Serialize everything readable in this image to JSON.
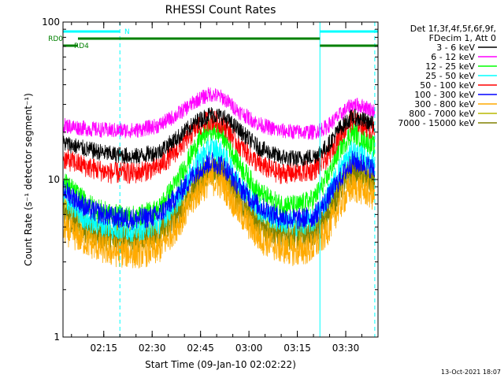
{
  "chart_data": {
    "type": "line",
    "title": "RHESSI Count Rates",
    "xlabel": "Start Time (09-Jan-10 02:02:22)",
    "ylabel": "Count Rate (s⁻¹ detector segment⁻¹)",
    "y_scale": "log",
    "xlim": [
      "02:02:22",
      "03:40:00"
    ],
    "ylim": [
      1,
      100
    ],
    "x_ticks": [
      "02:15",
      "02:30",
      "02:45",
      "03:00",
      "03:15",
      "03:30"
    ],
    "y_ticks": [
      "1",
      "10",
      "100"
    ],
    "grid": false,
    "legend_header": [
      "Det 1f,3f,4f,5f,6f,9f,",
      "FDecim 1, Att 0"
    ],
    "legend_position": "right",
    "series": [
      {
        "name": "3 - 6 keV",
        "color": "#000000",
        "x": [
          "02:03",
          "02:10",
          "02:17",
          "02:25",
          "02:32",
          "02:38",
          "02:44",
          "02:48",
          "02:52",
          "02:57",
          "03:03",
          "03:09",
          "03:15",
          "03:20",
          "03:24",
          "03:28",
          "03:32",
          "03:36",
          "03:39"
        ],
        "y": [
          17,
          15.5,
          14.5,
          14,
          15,
          18.5,
          23.5,
          26,
          25,
          20.5,
          16,
          14,
          13.5,
          14,
          16,
          21,
          25,
          23.5,
          22
        ]
      },
      {
        "name": "6 - 12 keV",
        "color": "#ff00ff",
        "x": [
          "02:03",
          "02:10",
          "02:17",
          "02:25",
          "02:32",
          "02:38",
          "02:44",
          "02:48",
          "02:52",
          "02:57",
          "03:03",
          "03:09",
          "03:15",
          "03:20",
          "03:24",
          "03:28",
          "03:32",
          "03:36",
          "03:39"
        ],
        "y": [
          22,
          21,
          20.5,
          20.5,
          22,
          26,
          32,
          35,
          33,
          27,
          22.5,
          20.5,
          20,
          20,
          21.5,
          25.5,
          30,
          29,
          27
        ]
      },
      {
        "name": "12 - 25 keV",
        "color": "#00ff00",
        "x": [
          "02:03",
          "02:10",
          "02:17",
          "02:25",
          "02:32",
          "02:38",
          "02:44",
          "02:48",
          "02:52",
          "02:57",
          "03:03",
          "03:09",
          "03:15",
          "03:20",
          "03:24",
          "03:28",
          "03:32",
          "03:36",
          "03:39"
        ],
        "y": [
          9.5,
          7,
          6,
          5.8,
          6.5,
          10,
          17,
          21,
          19,
          12.5,
          8.3,
          7,
          6.8,
          7.5,
          10,
          15.5,
          20,
          18,
          16
        ]
      },
      {
        "name": "25 - 50 keV",
        "color": "#00ffff",
        "x": [
          "02:03",
          "02:10",
          "02:17",
          "02:25",
          "02:32",
          "02:38",
          "02:44",
          "02:48",
          "02:52",
          "02:57",
          "03:03",
          "03:09",
          "03:15",
          "03:20",
          "03:24",
          "03:28",
          "03:32",
          "03:36",
          "03:39"
        ],
        "y": [
          7.5,
          5.5,
          5,
          4.8,
          5.3,
          7.5,
          13,
          16,
          14.5,
          9.5,
          6.5,
          5.5,
          5.2,
          5.5,
          7.5,
          11.5,
          15,
          14,
          12.5
        ]
      },
      {
        "name": "50 - 100 keV",
        "color": "#ff0000",
        "x": [
          "02:03",
          "02:10",
          "02:17",
          "02:25",
          "02:32",
          "02:38",
          "02:44",
          "02:48",
          "02:52",
          "02:57",
          "03:03",
          "03:09",
          "03:15",
          "03:20",
          "03:24",
          "03:28",
          "03:32",
          "03:36",
          "03:39"
        ],
        "y": [
          13.5,
          12,
          11,
          11,
          12,
          15.5,
          21.5,
          24,
          22.5,
          16.5,
          12.5,
          11,
          11,
          11.5,
          13.5,
          19,
          24,
          22,
          20
        ]
      },
      {
        "name": "100 - 300 keV",
        "color": "#0000ff",
        "x": [
          "02:03",
          "02:10",
          "02:17",
          "02:25",
          "02:32",
          "02:38",
          "02:44",
          "02:48",
          "02:52",
          "02:57",
          "03:03",
          "03:09",
          "03:15",
          "03:20",
          "03:24",
          "03:28",
          "03:32",
          "03:36",
          "03:39"
        ],
        "y": [
          8.5,
          6.5,
          5.8,
          5.6,
          5.9,
          8,
          11.5,
          13,
          12.3,
          9,
          6.8,
          5.8,
          5.6,
          5.8,
          7.3,
          10,
          13,
          12.5,
          11.5
        ]
      },
      {
        "name": "300 - 800 keV",
        "color": "#ffaa00",
        "x": [
          "02:03",
          "02:10",
          "02:17",
          "02:25",
          "02:32",
          "02:38",
          "02:44",
          "02:48",
          "02:52",
          "02:57",
          "03:03",
          "03:09",
          "03:15",
          "03:20",
          "03:24",
          "03:28",
          "03:32",
          "03:36",
          "03:39"
        ],
        "y": [
          4.8,
          4,
          3.5,
          3.4,
          3.6,
          5.2,
          8.2,
          10,
          9.3,
          6.2,
          4.3,
          3.7,
          3.5,
          3.7,
          4.6,
          6.8,
          9,
          8.5,
          7.8
        ]
      },
      {
        "name": "800 - 7000 keV",
        "color": "#b8b800",
        "x": [
          "02:03",
          "02:10",
          "02:17",
          "02:25",
          "02:32",
          "02:38",
          "02:44",
          "02:48",
          "02:52",
          "02:57",
          "03:03",
          "03:09",
          "03:15",
          "03:20",
          "03:24",
          "03:28",
          "03:32",
          "03:36",
          "03:39"
        ],
        "y": [
          6.5,
          5,
          4.5,
          4.3,
          4.7,
          6.5,
          10,
          12,
          11.3,
          7.8,
          5.5,
          4.7,
          4.5,
          4.7,
          6,
          9,
          12,
          11,
          10
        ]
      },
      {
        "name": "7000 - 15000 keV",
        "color": "#808000",
        "x": [
          "02:03",
          "02:10",
          "02:17",
          "02:25",
          "02:32",
          "02:38",
          "02:44",
          "02:48",
          "02:52",
          "02:57",
          "03:03",
          "03:09",
          "03:15",
          "03:20",
          "03:24",
          "03:28",
          "03:32",
          "03:36",
          "03:39"
        ],
        "y": [
          6,
          4.7,
          4.2,
          4.1,
          4.4,
          6,
          9.5,
          11.5,
          10.8,
          7.3,
          5.2,
          4.5,
          4.3,
          4.5,
          5.7,
          8.5,
          11,
          10.5,
          9.5
        ]
      }
    ],
    "flag_bars": [
      {
        "label": "N",
        "color": "#00ffff",
        "segments": [
          [
            "02:02:22",
            "02:20:00"
          ],
          [
            "03:22:00",
            "03:40:00"
          ]
        ]
      },
      {
        "label": "RD0",
        "color": "#008000",
        "segments": [
          [
            "02:07:00",
            "03:22:00"
          ]
        ]
      },
      {
        "label": "RD4",
        "color": "#008000",
        "segments": [
          [
            "02:02:22",
            "02:07:00"
          ],
          [
            "03:22:00",
            "03:40:00"
          ]
        ]
      }
    ],
    "vertical_lines": [
      {
        "time": "02:02:22",
        "color": "#00ffff",
        "style": "solid"
      },
      {
        "time": "02:20:00",
        "color": "#00ffff",
        "style": "dashed"
      },
      {
        "time": "03:22:00",
        "color": "#00ffff",
        "style": "solid"
      },
      {
        "time": "03:39:00",
        "color": "#00ffff",
        "style": "dashed"
      }
    ]
  },
  "timestamp": "13-Oct-2021 18:07"
}
